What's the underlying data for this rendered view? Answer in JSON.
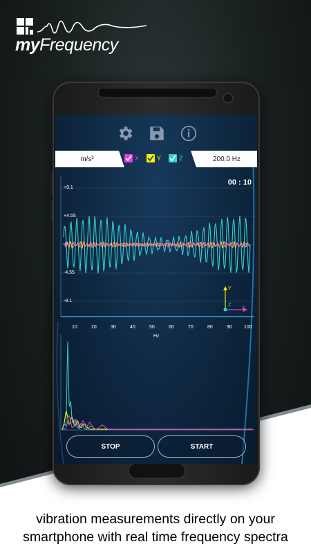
{
  "app": {
    "logo_text_prefix": "my",
    "logo_text_suffix": "Frequency"
  },
  "toolbar": {
    "icons": [
      "gear-icon",
      "save-icon",
      "info-icon"
    ]
  },
  "settings": {
    "unit": "m/s²",
    "sample_rate": "200.0 Hz",
    "axes": [
      {
        "label": "X",
        "color": "#e040e0",
        "checked": true
      },
      {
        "label": "Y",
        "color": "#f2f20a",
        "checked": true
      },
      {
        "label": "Z",
        "color": "#35d0d0",
        "checked": true
      }
    ]
  },
  "time_chart": {
    "timer": "00 : 10",
    "y_ticks": [
      "+9.1",
      "+4.55",
      "0",
      "-4.55",
      "-9.1"
    ],
    "y_tick_values": [
      9.1,
      4.55,
      0,
      -4.55,
      -9.1
    ],
    "axis_indicator": {
      "x": "X",
      "y": "Y",
      "z": "Z"
    }
  },
  "spectrum": {
    "x_ticks": [
      "10",
      "20",
      "30",
      "40",
      "50",
      "60",
      "70",
      "80",
      "90",
      "100"
    ],
    "x_label": "Hz"
  },
  "buttons": {
    "stop": "STOP",
    "start": "START"
  },
  "caption": {
    "line1": "vibration measurements directly on your",
    "line2": "smartphone with real time frequency spectra"
  },
  "colors": {
    "x_axis": "#e040e0",
    "y_axis": "#f2f20a",
    "z_axis": "#35d0d0",
    "screen_bg": "#0e2740"
  }
}
